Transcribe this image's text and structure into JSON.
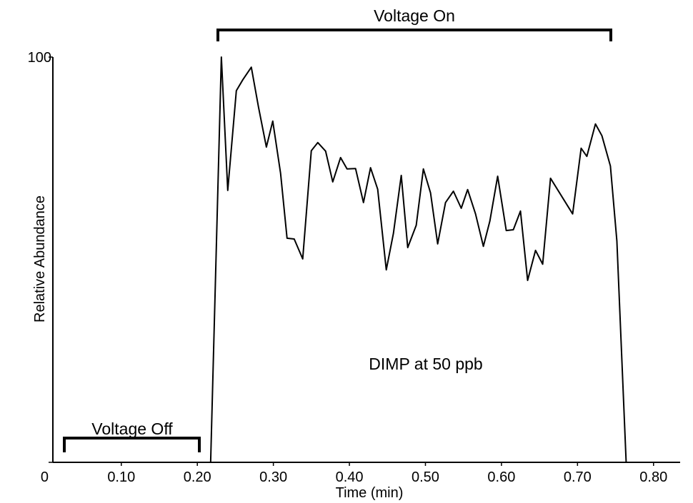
{
  "chart_data": {
    "type": "line",
    "annotations": [
      "Voltage On",
      "Voltage Off",
      "DIMP at 50 ppb"
    ],
    "xlabel": "Time (min)",
    "ylabel": "Relative Abundance",
    "x": [
      0.01,
      0.2175,
      0.2316,
      0.24,
      0.2513,
      0.2598,
      0.271,
      0.2804,
      0.2908,
      0.2992,
      0.3095,
      0.318,
      0.3274,
      0.3386,
      0.3499,
      0.3584,
      0.3687,
      0.3781,
      0.3884,
      0.3969,
      0.4081,
      0.4185,
      0.4278,
      0.4372,
      0.4485,
      0.4579,
      0.4682,
      0.4767,
      0.4879,
      0.4973,
      0.5067,
      0.5161,
      0.5264,
      0.5368,
      0.5471,
      0.5555,
      0.5659,
      0.5762,
      0.5847,
      0.595,
      0.6063,
      0.6156,
      0.625,
      0.6344,
      0.6448,
      0.6542,
      0.6645,
      0.6936,
      0.7048,
      0.7123,
      0.7236,
      0.7321,
      0.7433,
      0.7518,
      0.764,
      0.8325
    ],
    "values": [
      0,
      0,
      100,
      67.1,
      91.7,
      94.4,
      97.5,
      87.7,
      77.8,
      84.2,
      71.3,
      55.3,
      55.1,
      50.2,
      76.9,
      78.9,
      76.8,
      69.2,
      75.2,
      72.4,
      72.5,
      64.1,
      72.7,
      67.4,
      47.5,
      56.5,
      70.8,
      53,
      58.5,
      72.4,
      66.5,
      53.9,
      64.1,
      66.9,
      62.7,
      67.3,
      61.3,
      53.3,
      59.5,
      70.6,
      57.2,
      57.4,
      62,
      44.9,
      52.3,
      48.9,
      70.1,
      61.3,
      77.5,
      75.5,
      83.5,
      80.6,
      73.1,
      54.6,
      0,
      0
    ],
    "color": "#000000",
    "xlim": [
      0.01,
      0.835
    ],
    "ylim": [
      0,
      100
    ],
    "xticks": [
      {
        "value": 0.1,
        "label": "0.10"
      },
      {
        "value": 0.2,
        "label": "0.20"
      },
      {
        "value": 0.3,
        "label": "0.30"
      },
      {
        "value": 0.4,
        "label": "0.40"
      },
      {
        "value": 0.5,
        "label": "0.50"
      },
      {
        "value": 0.6,
        "label": "0.60"
      },
      {
        "value": 0.7,
        "label": "0.70"
      },
      {
        "value": 0.8,
        "label": "0.80"
      }
    ],
    "yticks": [
      0,
      100
    ],
    "grid": false
  }
}
